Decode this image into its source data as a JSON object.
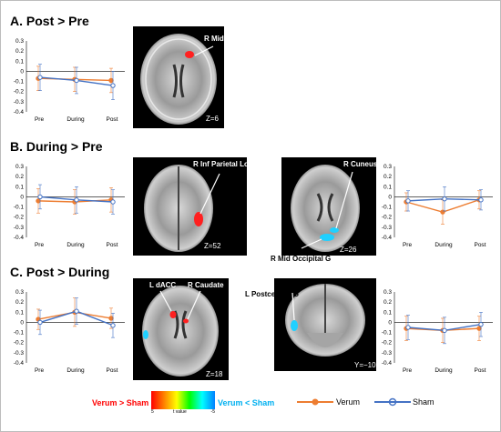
{
  "sections": [
    {
      "id": "A",
      "title": "A. Post > Pre",
      "regions": [
        "R Mid Frontal G"
      ],
      "slice": "Z=6"
    },
    {
      "id": "B",
      "title": "B. During > Pre",
      "regions": [
        "R Inf Parietal Lobule",
        "R Cuneus",
        "R Mid Occipital G"
      ],
      "slices": [
        "Z=52",
        "Z=26"
      ]
    },
    {
      "id": "C",
      "title": "C. Post > During",
      "regions": [
        "L dACC",
        "R Caudate",
        "L Postcentral G"
      ],
      "slices": [
        "Z=18",
        "Y=−10"
      ]
    }
  ],
  "legend": {
    "verum_gt_sham": "Verum > Sham",
    "verum_lt_sham": "Verum < Sham",
    "scale_left": "5",
    "scale_mid": "t value",
    "scale_right": "-5",
    "verum_label": "Verum",
    "sham_label": "Sham"
  },
  "colors": {
    "verum": "#ed7d31",
    "sham": "#4472c4",
    "red_title": "#ff0000",
    "blue_title": "#00b0f0",
    "activation_red": "#ff2020",
    "activation_cyan": "#20d0ff"
  },
  "chart_data": [
    {
      "type": "line",
      "panel": "A",
      "categories": [
        "Pre",
        "During",
        "Post"
      ],
      "ylim": [
        -0.4,
        0.3
      ],
      "yticks": [
        "0.3",
        "0.2",
        "0.1",
        "0",
        "-0.1",
        "-0.2",
        "-0.3",
        "-0.4"
      ],
      "series": [
        {
          "name": "Verum",
          "values": [
            -0.07,
            -0.08,
            -0.09
          ],
          "err": [
            0.12,
            0.12,
            0.12
          ]
        },
        {
          "name": "Sham",
          "values": [
            -0.06,
            -0.09,
            -0.14
          ],
          "err": [
            0.13,
            0.13,
            0.14
          ]
        }
      ]
    },
    {
      "type": "line",
      "panel": "B-left",
      "categories": [
        "Pre",
        "During",
        "Post"
      ],
      "ylim": [
        -0.4,
        0.3
      ],
      "yticks": [
        "0.3",
        "0.2",
        "0.1",
        "0",
        "-0.1",
        "-0.2",
        "-0.3",
        "-0.4"
      ],
      "series": [
        {
          "name": "Verum",
          "values": [
            -0.04,
            -0.05,
            -0.03
          ],
          "err": [
            0.12,
            0.12,
            0.12
          ]
        },
        {
          "name": "Sham",
          "values": [
            0.0,
            -0.03,
            -0.05
          ],
          "err": [
            0.12,
            0.13,
            0.12
          ]
        }
      ]
    },
    {
      "type": "line",
      "panel": "B-right",
      "categories": [
        "Pre",
        "During",
        "Post"
      ],
      "ylim": [
        -0.4,
        0.3
      ],
      "yticks": [
        "0.3",
        "0.2",
        "0.1",
        "0",
        "-0.1",
        "-0.2",
        "-0.3",
        "-0.4"
      ],
      "series": [
        {
          "name": "Verum",
          "values": [
            -0.05,
            -0.15,
            -0.03
          ],
          "err": [
            0.09,
            0.12,
            0.09
          ]
        },
        {
          "name": "Sham",
          "values": [
            -0.04,
            -0.02,
            -0.03
          ],
          "err": [
            0.1,
            0.12,
            0.1
          ]
        }
      ]
    },
    {
      "type": "line",
      "panel": "C-left",
      "categories": [
        "Pre",
        "During",
        "Post"
      ],
      "ylim": [
        -0.4,
        0.3
      ],
      "yticks": [
        "0.3",
        "0.2",
        "0.1",
        "0",
        "-0.1",
        "-0.2",
        "-0.3",
        "-0.4"
      ],
      "series": [
        {
          "name": "Verum",
          "values": [
            0.03,
            0.1,
            0.04
          ],
          "err": [
            0.1,
            0.14,
            0.1
          ]
        },
        {
          "name": "Sham",
          "values": [
            0.0,
            0.11,
            -0.03
          ],
          "err": [
            0.12,
            0.13,
            0.12
          ]
        }
      ]
    },
    {
      "type": "line",
      "panel": "C-right",
      "categories": [
        "Pre",
        "During",
        "Post"
      ],
      "ylim": [
        -0.4,
        0.3
      ],
      "yticks": [
        "0.3",
        "0.2",
        "0.1",
        "0",
        "-0.1",
        "-0.2",
        "-0.3",
        "-0.4"
      ],
      "series": [
        {
          "name": "Verum",
          "values": [
            -0.06,
            -0.08,
            -0.06
          ],
          "err": [
            0.12,
            0.12,
            0.12
          ]
        },
        {
          "name": "Sham",
          "values": [
            -0.05,
            -0.08,
            -0.02
          ],
          "err": [
            0.12,
            0.13,
            0.12
          ]
        }
      ]
    }
  ]
}
